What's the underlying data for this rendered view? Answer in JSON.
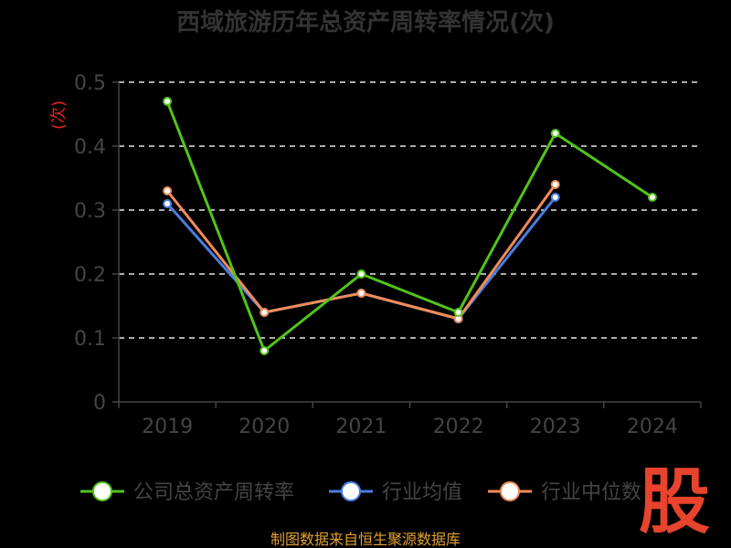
{
  "chart_data": {
    "type": "line",
    "title": "西域旅游历年总资产周转率情况(次)",
    "ylabel": "(次)",
    "categories": [
      "2019",
      "2020",
      "2021",
      "2022",
      "2023",
      "2024"
    ],
    "ylim": [
      0,
      0.5
    ],
    "yticks": [
      "0",
      "0.1",
      "0.2",
      "0.3",
      "0.4",
      "0.5"
    ],
    "grid": true,
    "legend_placement": "bottom",
    "series": [
      {
        "name": "公司总资产周转率",
        "color": "#52c41a",
        "values": [
          0.47,
          0.08,
          0.2,
          0.14,
          0.42,
          0.32
        ]
      },
      {
        "name": "行业均值",
        "color": "#4a7ee0",
        "values": [
          0.31,
          0.14,
          0.17,
          0.13,
          0.32,
          null
        ]
      },
      {
        "name": "行业中位数",
        "color": "#f08c5a",
        "values": [
          0.33,
          0.14,
          0.17,
          0.13,
          0.34,
          null
        ]
      }
    ]
  },
  "footer": {
    "source": "制图数据来自恒生聚源数据库"
  },
  "watermark": {
    "logo_text": "股"
  }
}
